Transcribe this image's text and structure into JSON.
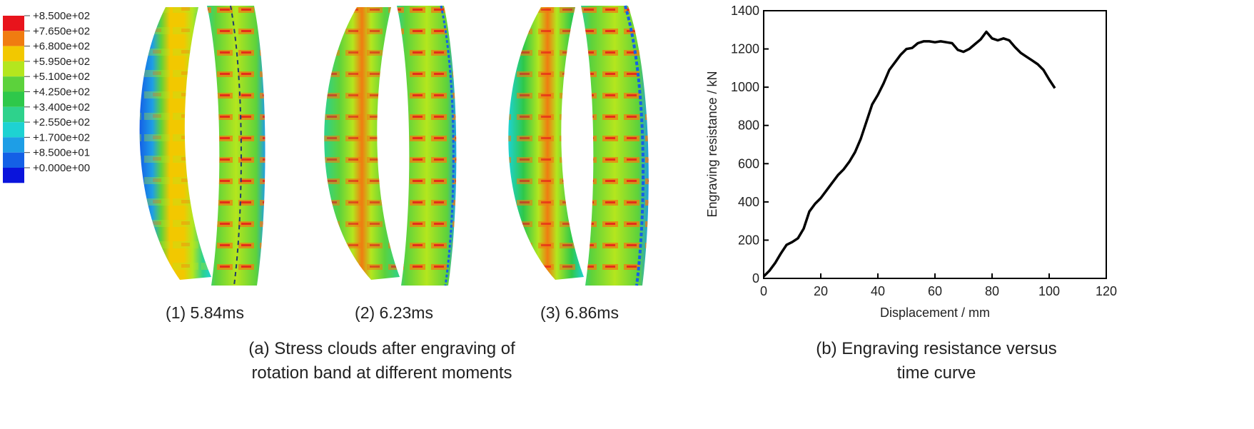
{
  "colorbar": {
    "labels": [
      "+8.500e+02",
      "+7.650e+02",
      "+6.800e+02",
      "+5.950e+02",
      "+5.100e+02",
      "+4.250e+02",
      "+3.400e+02",
      "+2.550e+02",
      "+1.700e+02",
      "+8.500e+01",
      "+0.000e+00"
    ],
    "colors": [
      "#e8141c",
      "#f07c10",
      "#f2c800",
      "#b4e61e",
      "#5cd23c",
      "#2ec84a",
      "#2ed28c",
      "#1ed2d2",
      "#1e9ee6",
      "#1460e6",
      "#0a14dc"
    ]
  },
  "panels": [
    {
      "label": "(1) 5.84ms"
    },
    {
      "label": "(2) 6.23ms"
    },
    {
      "label": "(3) 6.86ms"
    }
  ],
  "captions": {
    "a_line1": "(a) Stress clouds after engraving of",
    "a_line2": "rotation band at different moments",
    "b_line1": "(b)  Engraving resistance versus",
    "b_line2": "time curve"
  },
  "chart_data": {
    "type": "line",
    "xlabel": "Displacement / mm",
    "ylabel": "Engraving resistance / kN",
    "xlim": [
      0,
      120
    ],
    "ylim": [
      0,
      1400
    ],
    "xticks": [
      0,
      20,
      40,
      60,
      80,
      100,
      120
    ],
    "yticks": [
      0,
      200,
      400,
      600,
      800,
      1000,
      1200,
      1400
    ],
    "grid": false,
    "series": [
      {
        "color": "#000000",
        "x": [
          0,
          2,
          4,
          6,
          8,
          10,
          12,
          14,
          16,
          18,
          20,
          22,
          24,
          26,
          28,
          30,
          32,
          34,
          36,
          38,
          40,
          42,
          44,
          46,
          48,
          50,
          52,
          54,
          56,
          58,
          60,
          62,
          64,
          66,
          68,
          70,
          72,
          74,
          76,
          78,
          80,
          82,
          84,
          86,
          88,
          90,
          92,
          94,
          96,
          98,
          100,
          102
        ],
        "y": [
          10,
          40,
          80,
          130,
          175,
          190,
          210,
          260,
          350,
          390,
          420,
          460,
          500,
          540,
          570,
          610,
          660,
          730,
          820,
          910,
          960,
          1020,
          1090,
          1130,
          1170,
          1200,
          1205,
          1230,
          1240,
          1240,
          1235,
          1240,
          1235,
          1230,
          1195,
          1185,
          1200,
          1225,
          1250,
          1290,
          1255,
          1245,
          1255,
          1245,
          1210,
          1180,
          1160,
          1140,
          1120,
          1090,
          1040,
          995
        ]
      }
    ]
  }
}
